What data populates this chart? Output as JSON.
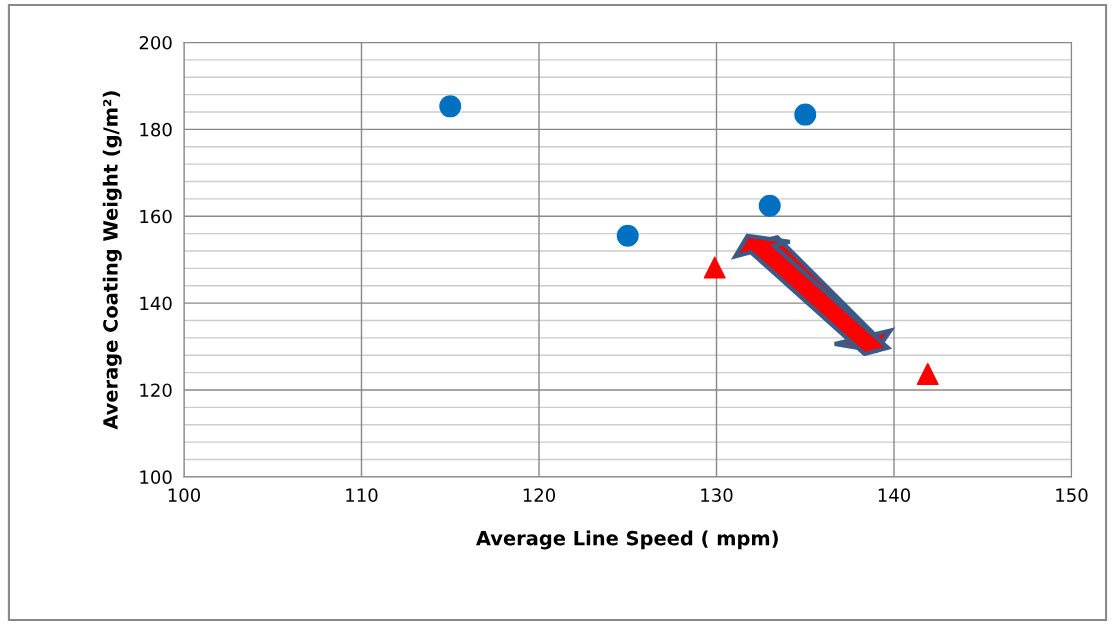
{
  "chart_data": {
    "type": "scatter",
    "xlabel": "Average Line Speed ( mpm)",
    "ylabel": "Average Coating Weight (g/m²)",
    "xlim": [
      100,
      150
    ],
    "xticks": [
      100,
      110,
      120,
      130,
      140,
      150
    ],
    "ylim": [
      100,
      200
    ],
    "yticks": [
      100,
      {
        "value": 104,
        "label": null
      },
      {
        "value": 108,
        "label": null
      },
      {
        "value": 112,
        "label": null
      },
      {
        "value": 116,
        "label": null
      },
      120,
      {
        "value": 124,
        "label": null
      },
      {
        "value": 128,
        "label": null
      },
      {
        "value": 132,
        "label": null
      },
      {
        "value": 136,
        "label": null
      },
      140,
      {
        "value": 144,
        "label": null
      },
      {
        "value": 148,
        "label": null
      },
      {
        "value": 152,
        "label": null
      },
      {
        "value": 156,
        "label": null
      },
      160,
      {
        "value": 164,
        "label": null
      },
      {
        "value": 168,
        "label": null
      },
      {
        "value": 172,
        "label": null
      },
      {
        "value": 176,
        "label": null
      },
      180,
      {
        "value": 184,
        "label": null
      },
      {
        "value": 188,
        "label": null
      },
      {
        "value": 192,
        "label": null
      },
      {
        "value": 196,
        "label": null
      },
      200
    ],
    "grid": true,
    "series": [
      {
        "color": "#0070c0",
        "marker": "circle",
        "x": [
          115,
          125,
          133,
          135
        ],
        "values": [
          185.3,
          155.5,
          162.4,
          183.4
        ]
      },
      {
        "color": "#ff0000",
        "marker": "triangle",
        "x": [
          129.9,
          141.9
        ],
        "values": [
          148.2,
          123.7
        ]
      }
    ]
  }
}
